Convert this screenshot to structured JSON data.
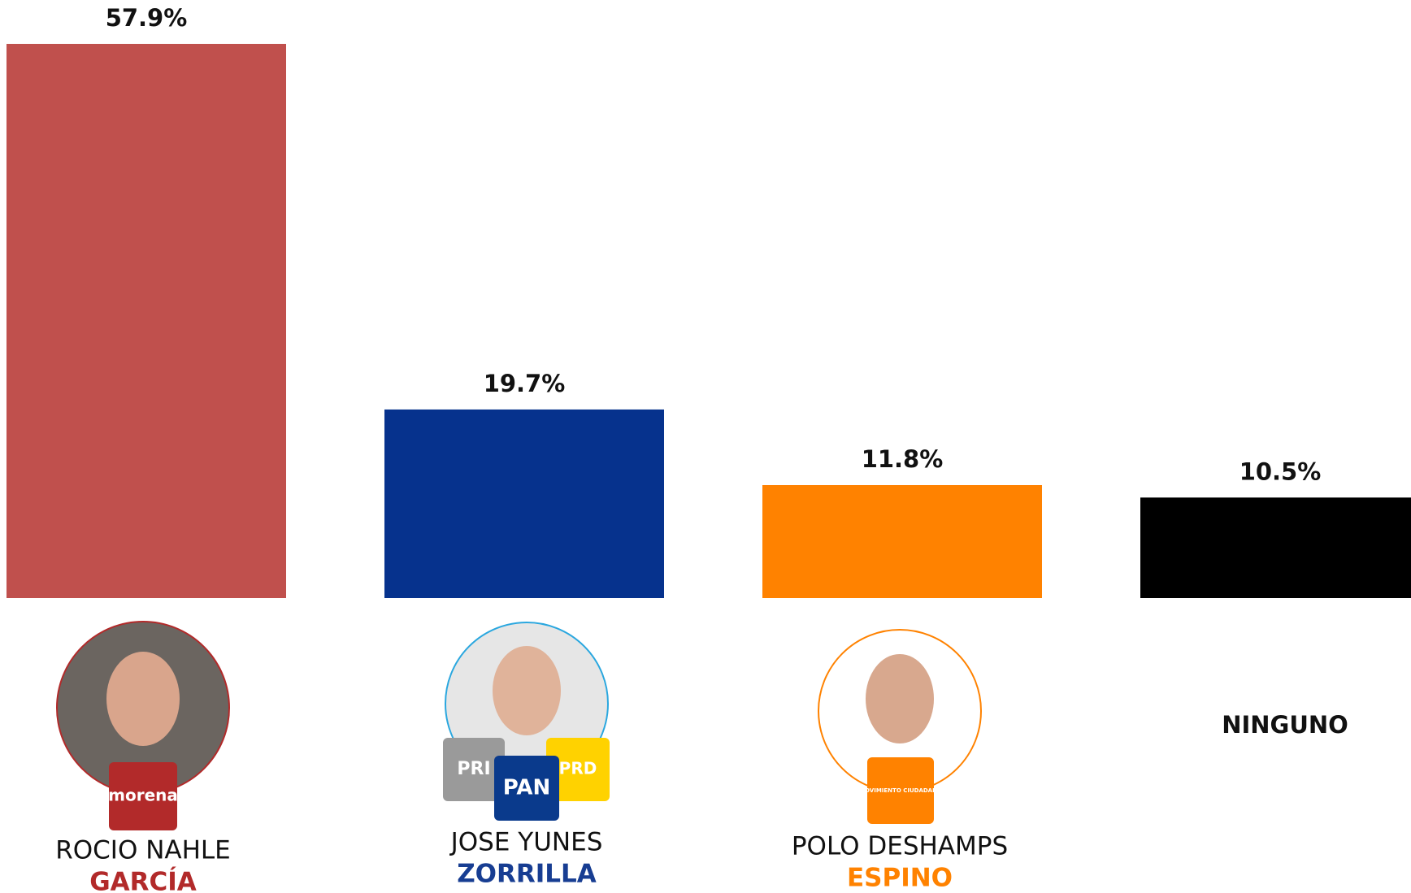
{
  "chart_data": {
    "type": "bar",
    "categories": [
      "ROCIO NAHLE",
      "JOSE YUNES",
      "POLO DESHAMPS",
      "NINGUNO"
    ],
    "surnames": [
      "GARCÍA",
      "ZORRILLA",
      "ESPINO",
      null
    ],
    "surname_colors": [
      "#b22a2a",
      "#173d92",
      "#ff8200",
      null
    ],
    "values": [
      57.9,
      19.7,
      11.8,
      10.5
    ],
    "value_labels": [
      "57.9%",
      "19.7%",
      "11.8%",
      "10.5%"
    ],
    "colors": [
      "#c0504d",
      "#06328d",
      "#ff8200",
      "#000000"
    ],
    "party_logos": [
      [
        "morena"
      ],
      [
        "PRI",
        "PAN",
        "PRD"
      ],
      [
        "MOVIMIENTO CIUDADANO"
      ],
      []
    ]
  }
}
